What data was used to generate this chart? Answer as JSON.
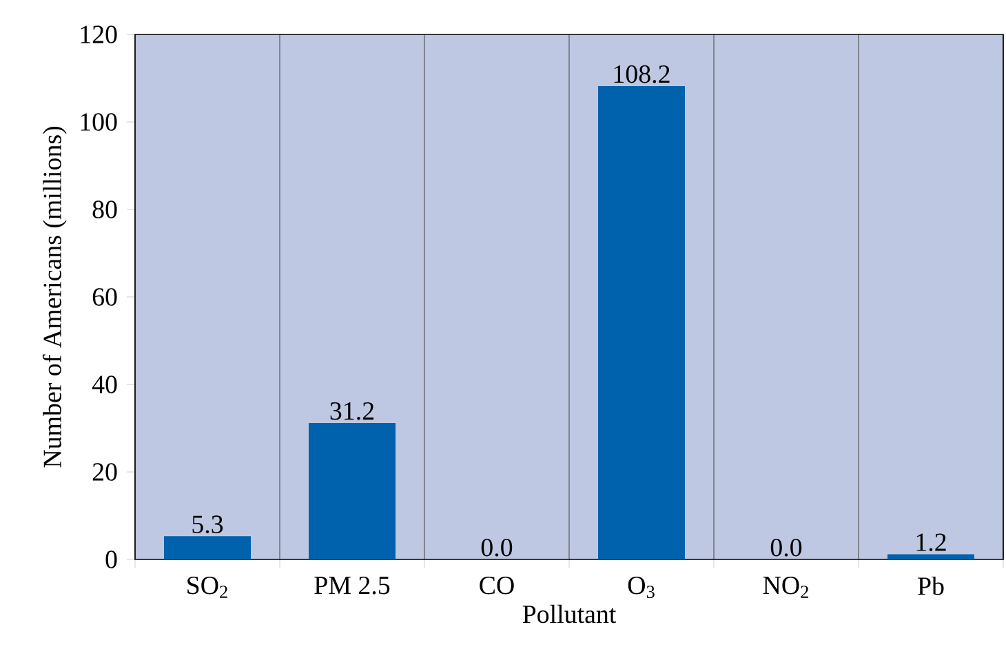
{
  "chart_data": {
    "type": "bar",
    "xlabel": "Pollutant",
    "ylabel": "Number of Americans (millions)",
    "categories": [
      "SO$_{2}$",
      "PM 2.5",
      "CO",
      "O$_{3}$",
      "NO$_{2}$",
      "Pb"
    ],
    "values": [
      5.3,
      31.2,
      0,
      108.2,
      0,
      1.2
    ],
    "value_labels": [
      "5.3",
      "31.2",
      "0.0",
      "108.2",
      "0.0",
      "1.2"
    ],
    "color": "#0061ad",
    "ylim": [
      0,
      120
    ],
    "yticks": [
      0,
      20,
      40,
      60,
      80,
      100,
      120
    ],
    "grid": "x"
  }
}
